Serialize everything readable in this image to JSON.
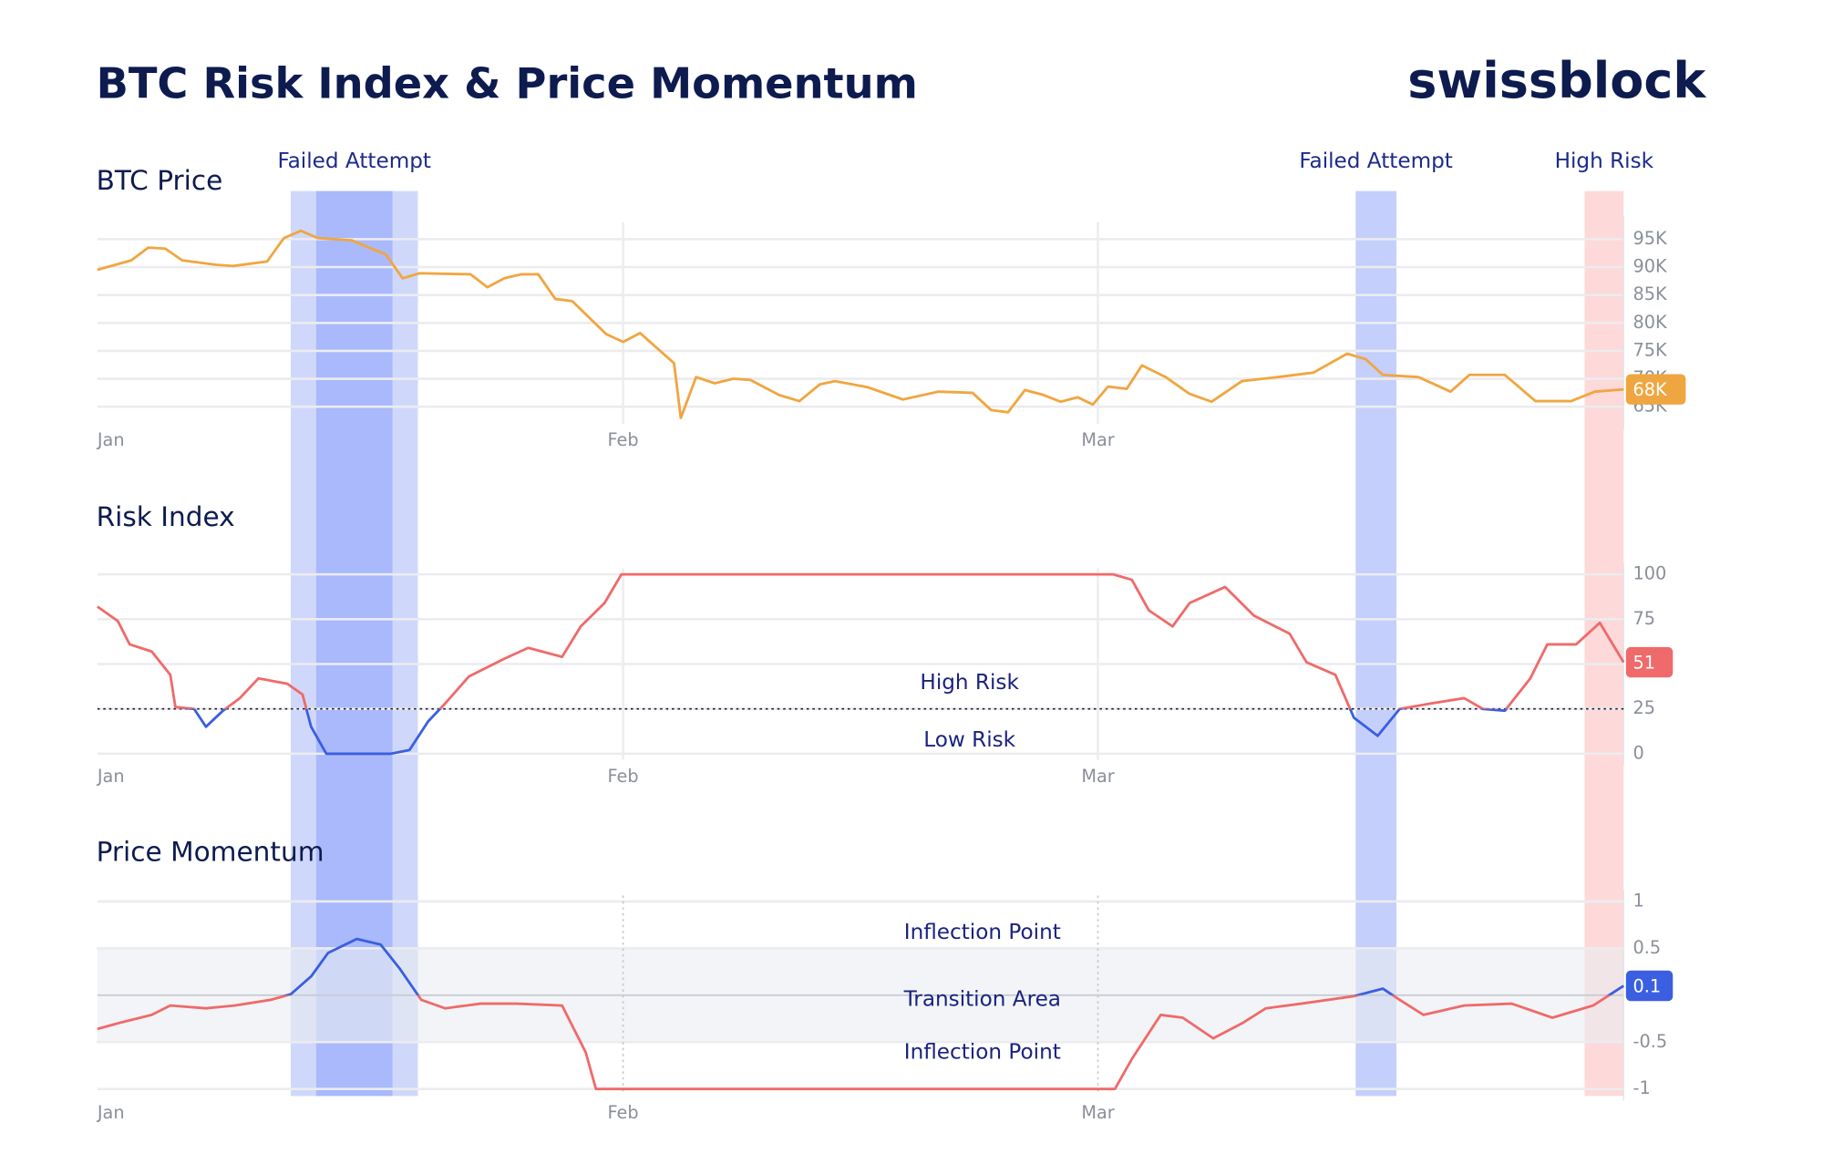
{
  "title": "BTC Risk Index & Price Momentum",
  "logo": "swissblock",
  "highlights": [
    {
      "label": "Failed Attempt",
      "start": 11.4,
      "end": 18.9,
      "core": [
        12.9,
        17.4
      ],
      "color": "#cfd8fb",
      "core_color": "#a9b9fb"
    },
    {
      "label": "Failed Attempt",
      "start": 74.2,
      "end": 76.6,
      "color": "#c4cffb"
    },
    {
      "label": "High Risk",
      "start": 87.7,
      "end": 90,
      "color": "#fdd9d9"
    }
  ],
  "chart_data": [
    {
      "type": "line",
      "title": "BTC Price",
      "color": "#f0a640",
      "xlim": [
        0,
        90
      ],
      "xticks": [
        {
          "value": 0,
          "label": "Jan"
        },
        {
          "value": 31,
          "label": "Feb"
        },
        {
          "value": 59,
          "label": "Mar"
        }
      ],
      "ylim": [
        63000,
        97000
      ],
      "yticks": [
        {
          "value": 65000,
          "label": "65K"
        },
        {
          "value": 70000,
          "label": "70K"
        },
        {
          "value": 75000,
          "label": "75K"
        },
        {
          "value": 80000,
          "label": "80K"
        },
        {
          "value": 85000,
          "label": "85K"
        },
        {
          "value": 90000,
          "label": "90K"
        },
        {
          "value": 95000,
          "label": "95K"
        }
      ],
      "grid": true,
      "current_label": "68K",
      "x": [
        0,
        2,
        3,
        4,
        5,
        7,
        8,
        10,
        11,
        12,
        13,
        15,
        16,
        17,
        18,
        19,
        22,
        23,
        24,
        25,
        26,
        27,
        28,
        30,
        31,
        32,
        34,
        34.4,
        35.3,
        36.4,
        37.5,
        38.5,
        40.2,
        41.4,
        42.6,
        43.5,
        45.4,
        47.5,
        49.6,
        51.6,
        52.7,
        53.7,
        54.7,
        55.8,
        56.8,
        57.8,
        58.7,
        59.6,
        60.7,
        61.6,
        63.0,
        64.4,
        65.7,
        67.5,
        69.6,
        71.7,
        73.7,
        74.8,
        75.8,
        77.9,
        79.8,
        80.9,
        83.0,
        84.8,
        86.9,
        88.3,
        90
      ],
      "values": [
        89500,
        91200,
        93500,
        93300,
        91200,
        90400,
        90200,
        91000,
        95200,
        96500,
        95200,
        94800,
        93500,
        92300,
        88000,
        88900,
        88700,
        86400,
        88000,
        88700,
        88700,
        84300,
        83900,
        78000,
        76600,
        78200,
        72800,
        63000,
        70300,
        69200,
        70000,
        69800,
        67100,
        66000,
        69000,
        69600,
        68500,
        66300,
        67700,
        67500,
        64400,
        64000,
        68000,
        67100,
        65900,
        66700,
        65400,
        68600,
        68200,
        72400,
        70300,
        67300,
        65900,
        69600,
        70300,
        71100,
        74500,
        73500,
        70700,
        70300,
        67700,
        70700,
        70700,
        66000,
        66000,
        67700,
        68100
      ]
    },
    {
      "type": "line",
      "title": "Risk Index",
      "xlim": [
        0,
        90
      ],
      "xticks": [
        {
          "value": 0,
          "label": "Jan"
        },
        {
          "value": 31,
          "label": "Feb"
        },
        {
          "value": 59,
          "label": "Mar"
        }
      ],
      "ylim": [
        0,
        100
      ],
      "yticks": [
        0,
        25,
        50,
        75,
        100
      ],
      "grid": true,
      "threshold": 25,
      "color_above": "#ef6a6a",
      "color_below": "#3a5fe0",
      "annotations": [
        {
          "text": "High Risk",
          "side": "above"
        },
        {
          "text": "Low Risk",
          "side": "below"
        }
      ],
      "x": [
        0,
        1.2,
        1.9,
        3.2,
        4.3,
        4.6,
        5.7,
        6.4,
        7.4,
        8.4,
        9.5,
        11.2,
        12.1,
        12.6,
        13.5,
        17.3,
        18.4,
        19.5,
        20.5,
        21.9,
        24,
        25.4,
        27.4,
        28.5,
        29.9,
        30.9,
        31.6,
        59.9,
        61,
        62,
        63.4,
        64.4,
        66.5,
        68.2,
        70.3,
        71.3,
        73,
        74.1,
        75.5,
        76.8,
        78.6,
        80.6,
        81.7,
        83,
        84.5,
        85.5,
        87.2,
        88.6,
        90
      ],
      "values": [
        82,
        74,
        61,
        57,
        44,
        26,
        25,
        15,
        24,
        31,
        42,
        39,
        33,
        15,
        0,
        0,
        2,
        18,
        28,
        43,
        53,
        59,
        54,
        71,
        84,
        100,
        100,
        100,
        97,
        80,
        71,
        84,
        93,
        77,
        67,
        51,
        44,
        20,
        10,
        25,
        28,
        31,
        25,
        24,
        42,
        61,
        61,
        73,
        51
      ]
    },
    {
      "type": "line",
      "title": "Price Momentum",
      "xlim": [
        0,
        90
      ],
      "xticks": [
        {
          "value": 0,
          "label": "Jan"
        },
        {
          "value": 31,
          "label": "Feb"
        },
        {
          "value": 59,
          "label": "Mar"
        }
      ],
      "ylim": [
        -1,
        1
      ],
      "yticks": [
        -1,
        -0.5,
        0,
        0.5,
        1
      ],
      "grid": true,
      "threshold": 0,
      "color_above": "#3a5fe0",
      "color_below": "#ef6a6a",
      "transition_area": [
        -0.5,
        0.5
      ],
      "annotations": [
        {
          "text": "Inflection Point",
          "side": "upper"
        },
        {
          "text": "Transition Area",
          "side": "middle"
        },
        {
          "text": "Inflection Point",
          "side": "lower"
        }
      ],
      "x": [
        0,
        1.2,
        3.2,
        4.3,
        6.4,
        8.1,
        10.2,
        11.4,
        12.6,
        13.6,
        15.3,
        16.7,
        17.8,
        19.1,
        20.5,
        22.6,
        24.7,
        27.4,
        28.8,
        29.4,
        56.5,
        60,
        61,
        62.7,
        64,
        65.8,
        67.5,
        68.9,
        71,
        74.1,
        75.8,
        76.8,
        78.2,
        80.6,
        83.4,
        85.8,
        88.2,
        90
      ],
      "values": [
        -0.36,
        -0.3,
        -0.21,
        -0.11,
        -0.14,
        -0.11,
        -0.05,
        0.01,
        0.2,
        0.45,
        0.6,
        0.54,
        0.29,
        -0.05,
        -0.14,
        -0.09,
        -0.09,
        -0.11,
        -0.61,
        -1,
        -1,
        -1,
        -0.68,
        -0.21,
        -0.24,
        -0.46,
        -0.3,
        -0.14,
        -0.09,
        -0.01,
        0.07,
        -0.05,
        -0.21,
        -0.11,
        -0.09,
        -0.24,
        -0.11,
        0.1
      ]
    }
  ]
}
